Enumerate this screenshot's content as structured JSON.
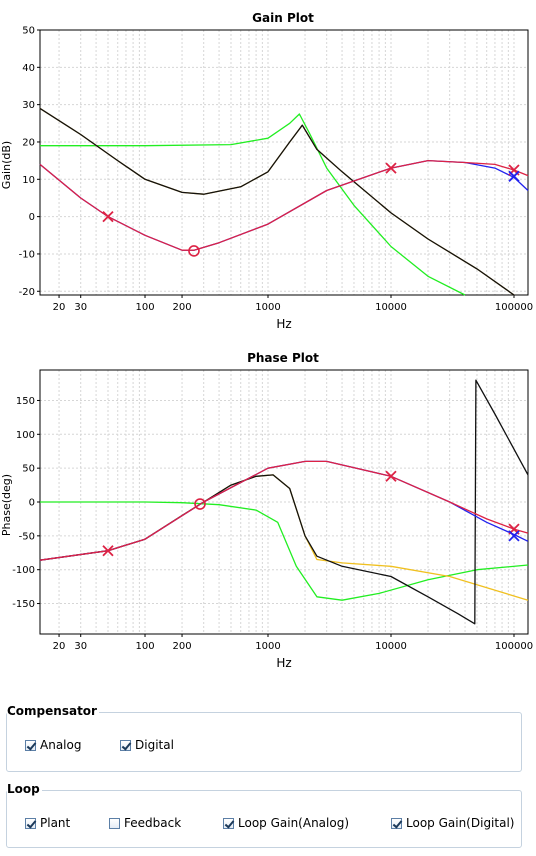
{
  "gain_plot": {
    "chart_data": {
      "type": "line",
      "title": "Gain Plot",
      "xlabel": "Hz",
      "ylabel": "Gain(dB)",
      "x_scale": "log",
      "xlim": [
        14,
        130000
      ],
      "ylim": [
        -21,
        50
      ],
      "x_ticks": [
        20,
        30,
        100,
        200,
        1000,
        10000,
        100000
      ],
      "x_tick_labels": [
        "20",
        "30",
        "100",
        "200",
        "1000",
        "10000",
        "100000"
      ],
      "y_ticks": [
        -20,
        -10,
        0,
        10,
        20,
        30,
        40,
        50
      ],
      "y_tick_labels": [
        "-20",
        "-10",
        "0",
        "10",
        "20",
        "30",
        "40",
        "50"
      ],
      "grid": true,
      "series": [
        {
          "color": "#22ee22",
          "x": [
            14,
            100,
            500,
            1000,
            1500,
            1800,
            2200,
            3000,
            5000,
            10000,
            20000,
            40000
          ],
          "y": [
            19,
            19,
            19.3,
            21,
            25,
            27.5,
            22,
            13,
            3,
            -8,
            -16,
            -21
          ]
        },
        {
          "color": "#e8b020",
          "x": [
            14,
            30,
            60,
            100,
            200,
            300,
            600,
            1000,
            1500,
            1900,
            2500,
            4000,
            10000,
            20000,
            50000,
            100000
          ],
          "y": [
            29,
            22,
            15,
            10,
            6.5,
            6,
            8,
            12,
            20,
            24.5,
            18,
            12,
            1,
            -6,
            -14,
            -21
          ]
        },
        {
          "color": "#111111",
          "x": [
            14,
            30,
            60,
            100,
            200,
            300,
            600,
            1000,
            1500,
            1900,
            2500,
            4000,
            10000,
            20000,
            50000,
            100000
          ],
          "y": [
            29,
            22,
            15,
            10,
            6.5,
            6,
            8,
            12,
            20,
            24.5,
            18,
            12,
            1,
            -6,
            -14,
            -21
          ]
        },
        {
          "color": "#2222ee",
          "x": [
            14,
            30,
            50,
            100,
            200,
            250,
            400,
            1000,
            3000,
            10000,
            20000,
            40000,
            70000,
            100000,
            130000
          ],
          "y": [
            14,
            5,
            0,
            -5,
            -9,
            -9,
            -7,
            -2,
            7,
            13,
            15,
            14.5,
            13,
            10.5,
            7
          ]
        },
        {
          "color": "#dd2244",
          "x": [
            14,
            30,
            50,
            100,
            200,
            250,
            400,
            1000,
            3000,
            10000,
            20000,
            40000,
            70000,
            100000,
            130000
          ],
          "y": [
            14,
            5,
            0,
            -5,
            -9,
            -9,
            -7,
            -2,
            7,
            13,
            15,
            14.5,
            14,
            12.5,
            11
          ]
        }
      ],
      "markers": [
        {
          "type": "x",
          "color": "#dd2244",
          "x": 50,
          "y": 0
        },
        {
          "type": "x",
          "color": "#dd2244",
          "x": 10000,
          "y": 13
        },
        {
          "type": "x",
          "color": "#dd2244",
          "x": 100000,
          "y": 12.5
        },
        {
          "type": "x",
          "color": "#2222ee",
          "x": 100000,
          "y": 10.8
        },
        {
          "type": "o",
          "color": "#dd2244",
          "x": 250,
          "y": -9.2
        }
      ]
    }
  },
  "phase_plot": {
    "chart_data": {
      "type": "line",
      "title": "Phase Plot",
      "xlabel": "Hz",
      "ylabel": "Phase(deg)",
      "x_scale": "log",
      "xlim": [
        14,
        130000
      ],
      "ylim": [
        -195,
        195
      ],
      "x_ticks": [
        20,
        30,
        100,
        200,
        1000,
        10000,
        100000
      ],
      "x_tick_labels": [
        "20",
        "30",
        "100",
        "200",
        "1000",
        "10000",
        "100000"
      ],
      "y_ticks": [
        -150,
        -100,
        -50,
        0,
        50,
        100,
        150
      ],
      "y_tick_labels": [
        "-150",
        "-100",
        "-50",
        "0",
        "50",
        "100",
        "150"
      ],
      "grid": true,
      "series": [
        {
          "color": "#22ee22",
          "x": [
            14,
            100,
            200,
            400,
            800,
            1200,
            1700,
            2500,
            4000,
            8000,
            20000,
            50000,
            130000
          ],
          "y": [
            0,
            0,
            -1,
            -4,
            -12,
            -30,
            -95,
            -140,
            -145,
            -135,
            -115,
            -100,
            -93
          ]
        },
        {
          "color": "#f0c020",
          "x": [
            14,
            50,
            100,
            200,
            300,
            500,
            800,
            1100,
            1500,
            2000,
            2500,
            4000,
            10000,
            30000,
            130000
          ],
          "y": [
            -86,
            -72,
            -55,
            -20,
            0,
            25,
            38,
            40,
            20,
            -50,
            -85,
            -90,
            -95,
            -110,
            -145
          ]
        },
        {
          "color": "#111111",
          "x": [
            14,
            50,
            100,
            200,
            300,
            500,
            800,
            1100,
            1500,
            2000,
            2500,
            4000,
            10000,
            20000,
            35000,
            48000,
            49000,
            70000,
            130000
          ],
          "y": [
            -86,
            -72,
            -55,
            -20,
            0,
            25,
            38,
            40,
            20,
            -50,
            -80,
            -95,
            -110,
            -140,
            -165,
            -180,
            180,
            130,
            40
          ]
        },
        {
          "color": "#2222ee",
          "x": [
            14,
            50,
            100,
            300,
            1000,
            2000,
            3000,
            10000,
            30000,
            60000,
            100000,
            130000
          ],
          "y": [
            -86,
            -72,
            -55,
            0,
            50,
            60,
            60,
            38,
            0,
            -30,
            -48,
            -58
          ]
        },
        {
          "color": "#dd2244",
          "x": [
            14,
            50,
            100,
            300,
            1000,
            2000,
            3000,
            10000,
            30000,
            60000,
            100000,
            130000
          ],
          "y": [
            -86,
            -72,
            -55,
            0,
            50,
            60,
            60,
            38,
            0,
            -25,
            -40,
            -46
          ]
        }
      ],
      "markers": [
        {
          "type": "x",
          "color": "#dd2244",
          "x": 50,
          "y": -72
        },
        {
          "type": "x",
          "color": "#dd2244",
          "x": 10000,
          "y": 38
        },
        {
          "type": "x",
          "color": "#dd2244",
          "x": 100000,
          "y": -40
        },
        {
          "type": "x",
          "color": "#2222ee",
          "x": 100000,
          "y": -50
        },
        {
          "type": "o",
          "color": "#dd2244",
          "x": 280,
          "y": -3
        }
      ]
    }
  },
  "compensator": {
    "title": "Compensator",
    "items": [
      {
        "label": "Analog",
        "checked": true
      },
      {
        "label": "Digital",
        "checked": true
      }
    ]
  },
  "loop": {
    "title": "Loop",
    "items": [
      {
        "label": "Plant",
        "checked": true
      },
      {
        "label": "Feedback",
        "checked": false
      },
      {
        "label": "Loop Gain(Analog)",
        "checked": true
      },
      {
        "label": "Loop Gain(Digital)",
        "checked": true
      }
    ]
  }
}
